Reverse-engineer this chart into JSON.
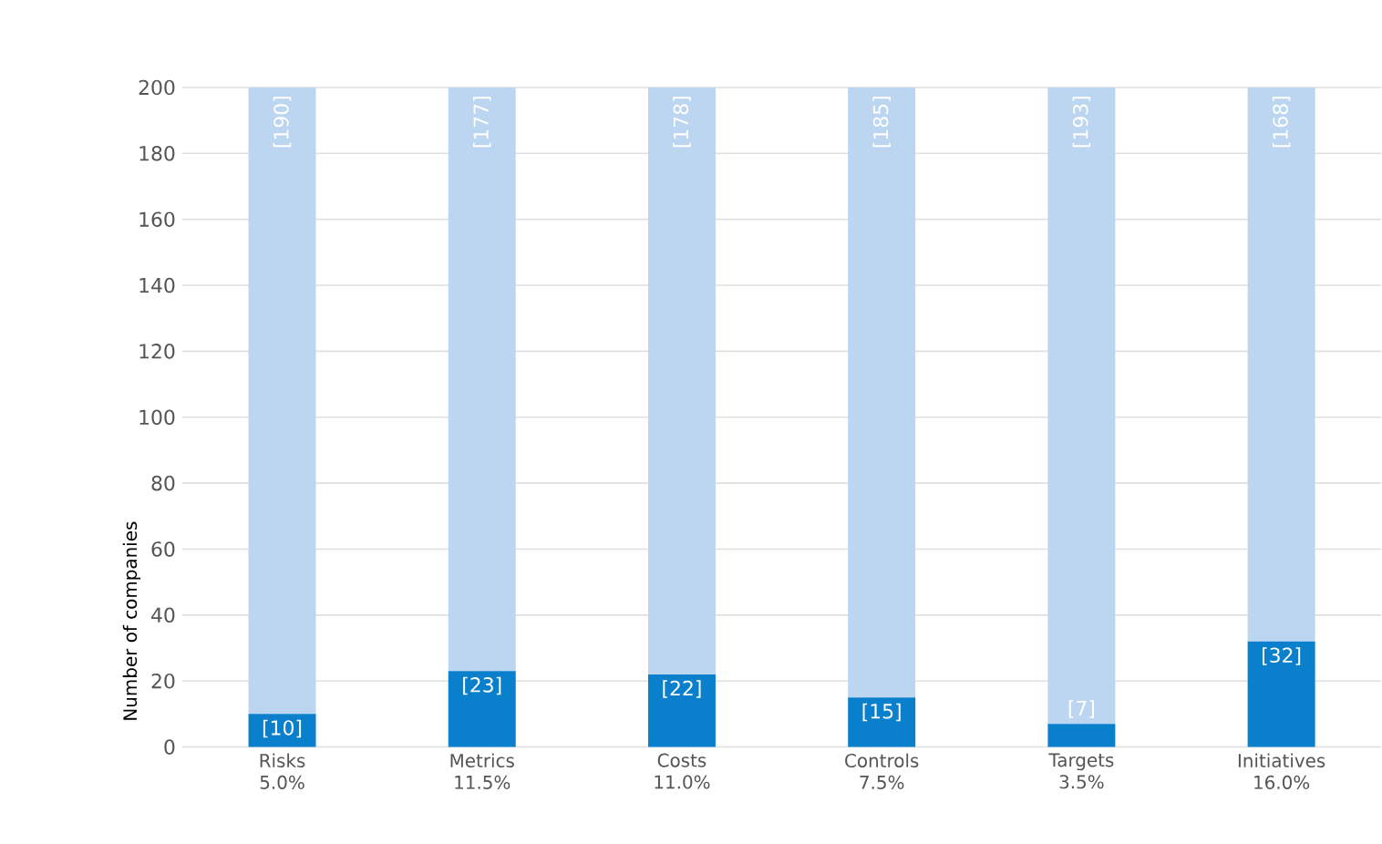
{
  "chart_data": {
    "type": "bar",
    "stacked": true,
    "ylabel": "Number of companies",
    "categories": [
      "Risks\n5.0%",
      "Metrics\n11.5%",
      "Costs\n11.0%",
      "Controls\n7.5%",
      "Targets\n3.5%",
      "Initiatives\n16.0%"
    ],
    "series": [
      {
        "color": "#0a7fcb",
        "values": [
          10,
          23,
          22,
          15,
          7,
          32
        ],
        "value_labels": [
          "[10]",
          "[23]",
          "[22]",
          "[15]",
          "[7]",
          "[32]"
        ]
      },
      {
        "color": "#bcd5f0",
        "values": [
          190,
          177,
          178,
          185,
          193,
          168
        ],
        "value_labels": [
          "[190]",
          "[177]",
          "[178]",
          "[185]",
          "[193]",
          "[168]"
        ]
      }
    ],
    "ylim": [
      0,
      200
    ],
    "yticks": [
      0,
      20,
      40,
      60,
      80,
      100,
      120,
      140,
      160,
      180,
      200
    ],
    "grid": "y"
  }
}
